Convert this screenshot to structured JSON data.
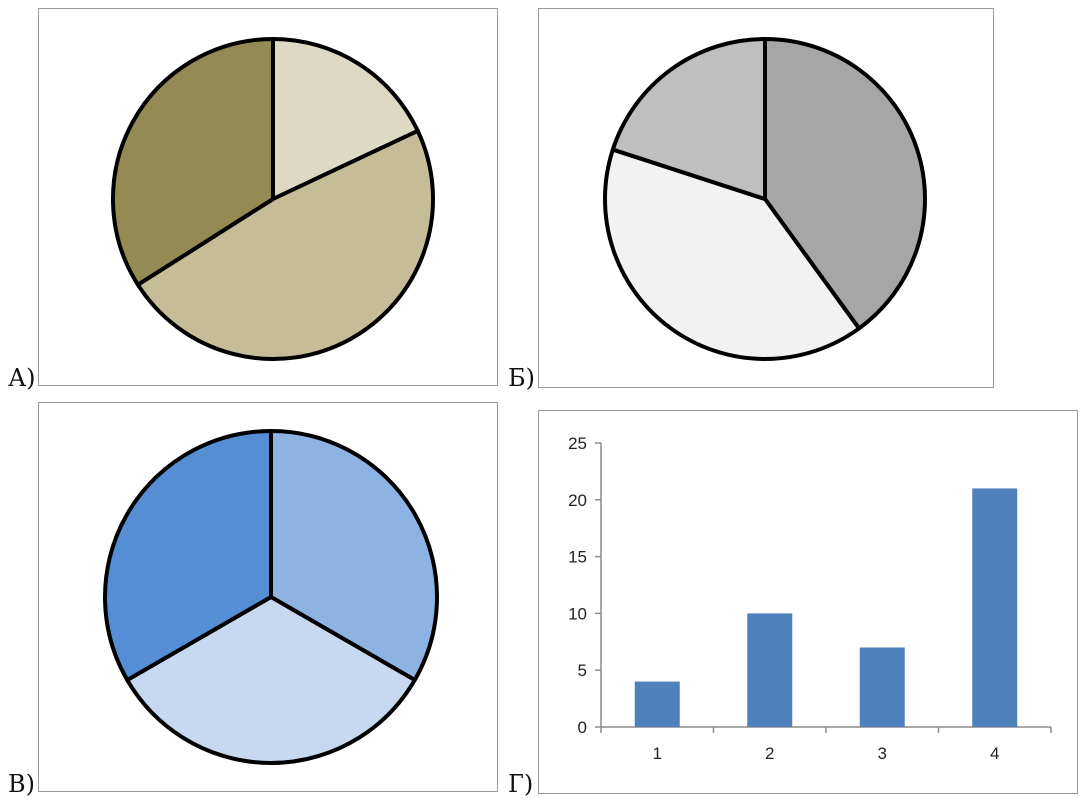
{
  "captions": {
    "a": "А)",
    "b": "Б)",
    "c": "В)",
    "d": "Г)"
  },
  "chart_data": [
    {
      "type": "pie",
      "title": "",
      "slices": [
        {
          "value": 18,
          "color": "#ddd9c3"
        },
        {
          "value": 48,
          "color": "#c4bd97"
        },
        {
          "value": 34,
          "color": "#948a54"
        }
      ]
    },
    {
      "type": "pie",
      "title": "",
      "slices": [
        {
          "value": 40,
          "color": "#a6a6a6"
        },
        {
          "value": 40,
          "color": "#f2f2f2"
        },
        {
          "value": 20,
          "color": "#bfbfbf"
        }
      ]
    },
    {
      "type": "pie",
      "title": "",
      "slices": [
        {
          "value": 1,
          "color": "#8db3e2"
        },
        {
          "value": 1,
          "color": "#c6d9f1"
        },
        {
          "value": 1,
          "color": "#558ed5"
        }
      ]
    },
    {
      "type": "bar",
      "title": "",
      "xlabel": "",
      "ylabel": "",
      "categories": [
        "1",
        "2",
        "3",
        "4"
      ],
      "values": [
        4,
        10,
        7,
        21
      ],
      "ylim": [
        0,
        25
      ],
      "yticks": [
        "0",
        "5",
        "10",
        "15",
        "20",
        "25"
      ],
      "bar_color": "#4f81bd",
      "grid": false
    }
  ]
}
